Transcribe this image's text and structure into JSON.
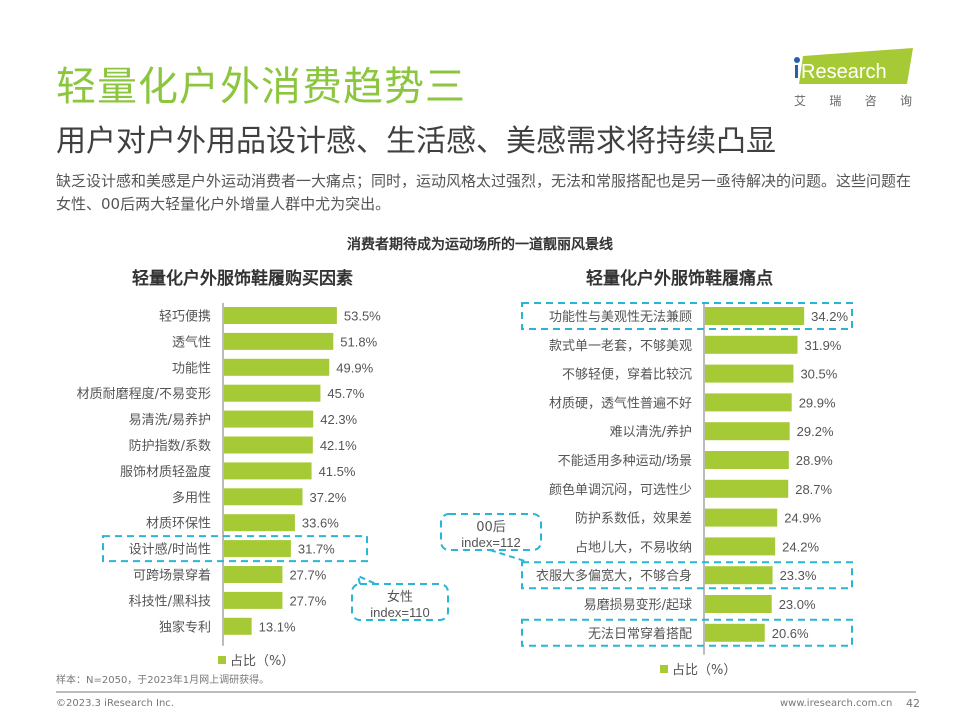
{
  "header": {
    "title": "轻量化户外消费趋势三",
    "subtitle": "用户对户外用品设计感、生活感、美感需求将持续凸显",
    "description": "缺乏设计感和美感是户外运动消费者一大痛点；同时，运动风格太过强烈，无法和常服搭配也是另一亟待解决的问题。这些问题在女性、00后两大轻量化户外增量人群中尤为突出。"
  },
  "logo": {
    "text": "iResearch",
    "cn_chars": [
      "艾",
      "瑞",
      "咨",
      "询"
    ]
  },
  "colors": {
    "title": "#8cc63f",
    "bar": "#a6ca35",
    "highlight": "#29b6d6"
  },
  "center_title": "消费者期待成为运动场所的一道靓丽风景线",
  "chart_data": [
    {
      "type": "bar",
      "orientation": "horizontal",
      "title": "轻量化户外服饰鞋履购买因素",
      "legend": "占比（%）",
      "legend_position": "bottom",
      "categories": [
        "轻巧便携",
        "透气性",
        "功能性",
        "材质耐磨程度/不易变形",
        "易清洗/易养护",
        "防护指数/系数",
        "服饰材质轻盈度",
        "多用性",
        "材质环保性",
        "设计感/时尚性",
        "可跨场景穿着",
        "科技性/黑科技",
        "独家专利"
      ],
      "values": [
        53.5,
        51.8,
        49.9,
        45.7,
        42.3,
        42.1,
        41.5,
        37.2,
        33.6,
        31.7,
        27.7,
        27.7,
        13.1
      ],
      "value_labels": [
        "53.5%",
        "51.8%",
        "49.9%",
        "45.7%",
        "42.3%",
        "42.1%",
        "41.5%",
        "37.2%",
        "33.6%",
        "31.7%",
        "27.7%",
        "27.7%",
        "13.1%"
      ],
      "highlight_indices": [
        9
      ],
      "annotation": {
        "line1": "女性",
        "line2": "index=110"
      }
    },
    {
      "type": "bar",
      "orientation": "horizontal",
      "title": "轻量化户外服饰鞋履痛点",
      "legend": "占比（%）",
      "legend_position": "bottom",
      "categories": [
        "功能性与美观性无法兼顾",
        "款式单一老套，不够美观",
        "不够轻便，穿着比较沉",
        "材质硬，透气性普遍不好",
        "难以清洗/养护",
        "不能适用多种运动/场景",
        "颜色单调沉闷，可选性少",
        "防护系数低，效果差",
        "占地儿大，不易收纳",
        "衣服大多偏宽大，不够合身",
        "易磨损易变形/起球",
        "无法日常穿着搭配"
      ],
      "values": [
        34.2,
        31.9,
        30.5,
        29.9,
        29.2,
        28.9,
        28.7,
        24.9,
        24.2,
        23.3,
        23.0,
        20.6
      ],
      "value_labels": [
        "34.2%",
        "31.9%",
        "30.5%",
        "29.9%",
        "29.2%",
        "28.9%",
        "28.7%",
        "24.9%",
        "24.2%",
        "23.3%",
        "23.0%",
        "20.6%"
      ],
      "highlight_indices": [
        0,
        9,
        11
      ],
      "annotation": {
        "line1": "00后",
        "line2": "index=112"
      }
    }
  ],
  "footer": {
    "note": "样本：N=2050，于2023年1月网上调研获得。",
    "copyright": "©2023.3 iResearch Inc.",
    "website": "www.iresearch.com.cn",
    "page": "42"
  }
}
